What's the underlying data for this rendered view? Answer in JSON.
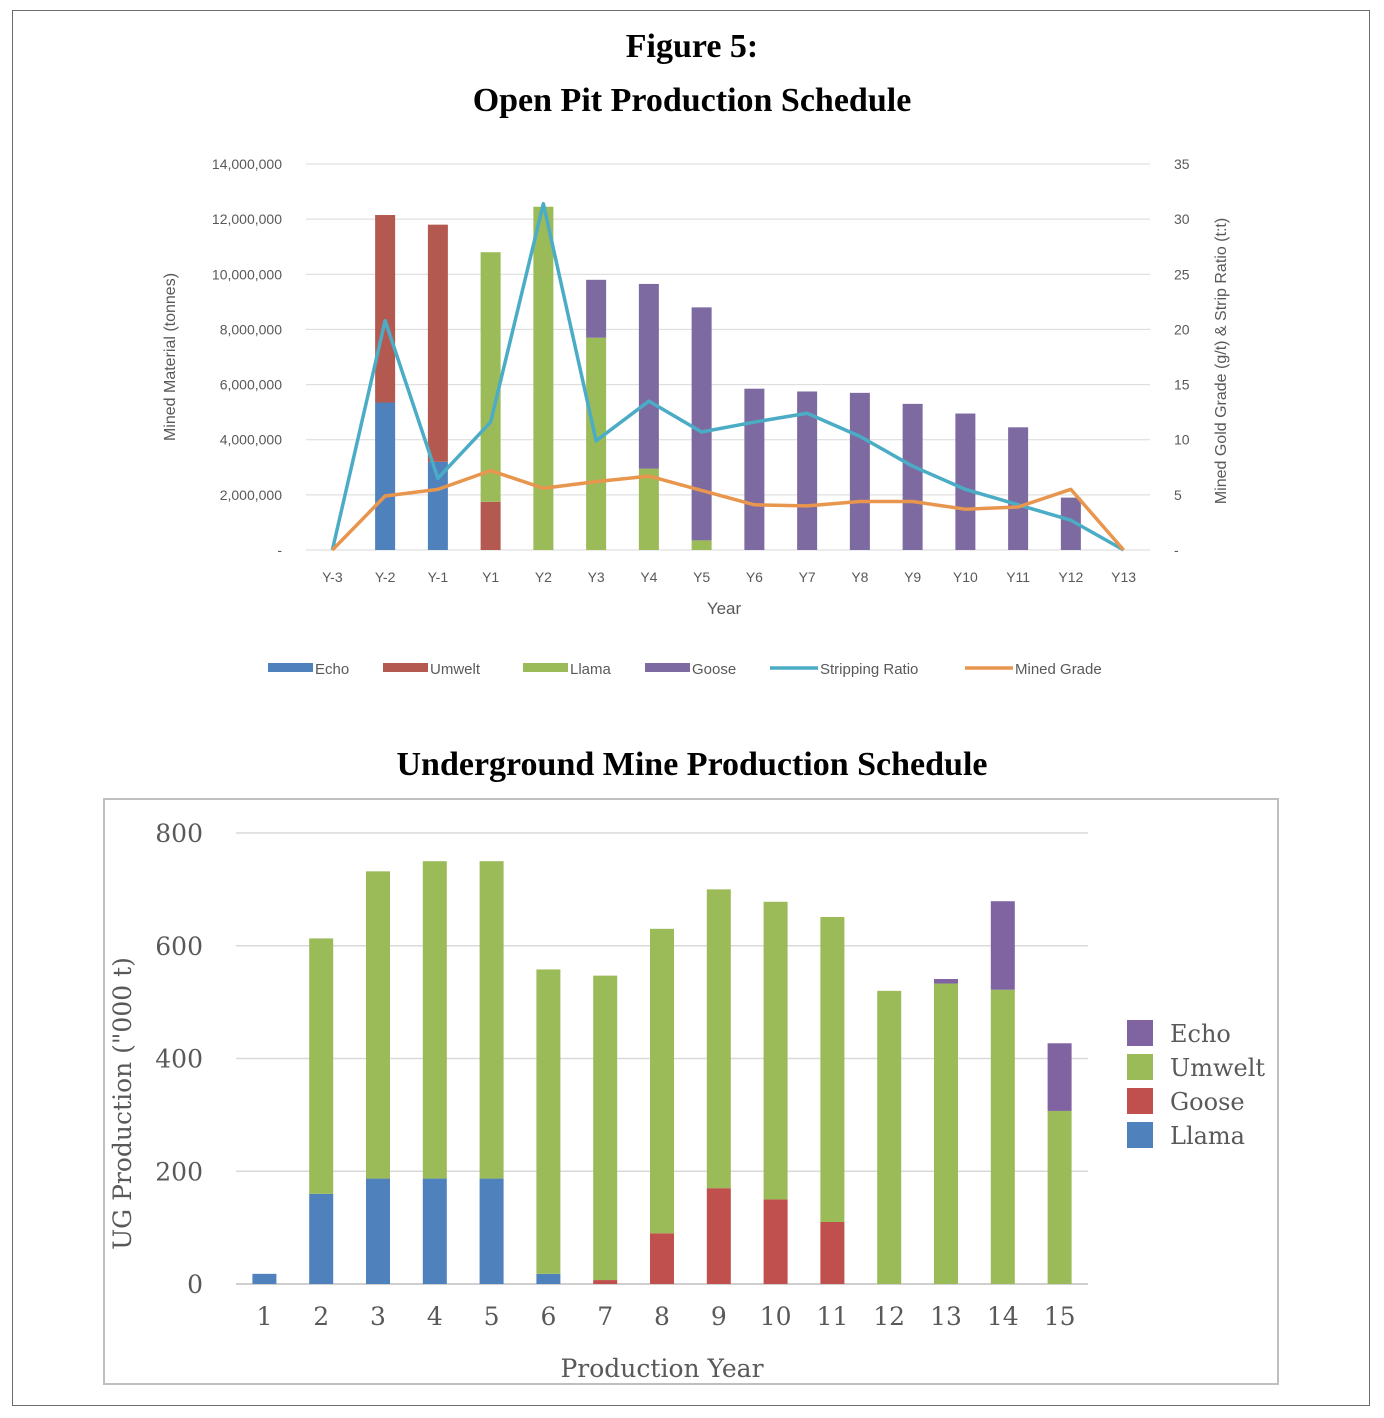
{
  "figure": {
    "figure_label": "Figure 5:",
    "top_title": "Open Pit Production Schedule",
    "bottom_title": "Underground Mine Production Schedule"
  },
  "colors": {
    "echo_top": "#4f81bd",
    "umwelt_top": "#b4594f",
    "llama_top": "#9bbb59",
    "goose_top": "#7d6aa0",
    "stripping": "#4bacc6",
    "grade": "#e8954e",
    "ug_echo": "#8064a2",
    "ug_umwelt": "#9bbb59",
    "ug_goose": "#c0504d",
    "ug_llama": "#4f81bd"
  },
  "chart_data": [
    {
      "type": "bar",
      "stacked": true,
      "title": "",
      "xlabel": "Year",
      "ylabel": "Mined Material (tonnes)",
      "y2label": "Mined Gold Grade (g/t) & Strip Ratio (t:t)",
      "categories": [
        "Y-3",
        "Y-2",
        "Y-1",
        "Y1",
        "Y2",
        "Y3",
        "Y4",
        "Y5",
        "Y6",
        "Y7",
        "Y8",
        "Y9",
        "Y10",
        "Y11",
        "Y12",
        "Y13"
      ],
      "ylim": [
        0,
        14000000
      ],
      "y2lim": [
        0,
        35
      ],
      "y_ticks": [
        {
          "value": 0,
          "label": "-"
        },
        {
          "value": 2000000,
          "label": "2,000,000"
        },
        {
          "value": 4000000,
          "label": "4,000,000"
        },
        {
          "value": 6000000,
          "label": "6,000,000"
        },
        {
          "value": 8000000,
          "label": "8,000,000"
        },
        {
          "value": 10000000,
          "label": "10,000,000"
        },
        {
          "value": 12000000,
          "label": "12,000,000"
        },
        {
          "value": 14000000,
          "label": "14,000,000"
        }
      ],
      "y2_ticks": [
        {
          "value": 0,
          "label": "-"
        },
        {
          "value": 5,
          "label": "5"
        },
        {
          "value": 10,
          "label": "10"
        },
        {
          "value": 15,
          "label": "15"
        },
        {
          "value": 20,
          "label": "20"
        },
        {
          "value": 25,
          "label": "25"
        },
        {
          "value": 30,
          "label": "30"
        },
        {
          "value": 35,
          "label": "35"
        }
      ],
      "series": [
        {
          "name": "Echo",
          "kind": "bar",
          "color_key": "echo_top",
          "values": [
            0,
            5350000,
            3200000,
            0,
            0,
            0,
            0,
            0,
            0,
            0,
            0,
            0,
            0,
            0,
            0,
            0
          ]
        },
        {
          "name": "Umwelt",
          "kind": "bar",
          "color_key": "umwelt_top",
          "values": [
            0,
            6800000,
            8600000,
            1750000,
            0,
            0,
            0,
            0,
            0,
            0,
            0,
            0,
            0,
            0,
            0,
            0
          ]
        },
        {
          "name": "Llama",
          "kind": "bar",
          "color_key": "llama_top",
          "values": [
            0,
            0,
            0,
            9050000,
            12450000,
            7700000,
            2950000,
            350000,
            0,
            0,
            0,
            0,
            0,
            0,
            0,
            0
          ]
        },
        {
          "name": "Goose",
          "kind": "bar",
          "color_key": "goose_top",
          "values": [
            0,
            0,
            0,
            0,
            0,
            2100000,
            6700000,
            8450000,
            5850000,
            5750000,
            5700000,
            5300000,
            4950000,
            4450000,
            1900000,
            0
          ]
        },
        {
          "name": "Stripping Ratio",
          "kind": "line",
          "axis": "y2",
          "color_key": "stripping",
          "values": [
            0,
            20.8,
            6.5,
            11.6,
            31.4,
            9.9,
            13.5,
            10.7,
            11.6,
            12.4,
            10.3,
            7.6,
            5.5,
            4.1,
            2.7,
            0
          ]
        },
        {
          "name": "Mined Grade",
          "kind": "line",
          "axis": "y2",
          "color_key": "grade",
          "values": [
            0,
            4.9,
            5.5,
            7.2,
            5.6,
            6.2,
            6.7,
            5.4,
            4.1,
            4.0,
            4.4,
            4.4,
            3.7,
            3.9,
            5.5,
            0
          ]
        }
      ],
      "grid": true,
      "legend": "bottom"
    },
    {
      "type": "bar",
      "stacked": true,
      "title": "",
      "xlabel": "Production Year",
      "ylabel": "UG Production (\"000 t)",
      "categories": [
        "1",
        "2",
        "3",
        "4",
        "5",
        "6",
        "7",
        "8",
        "9",
        "10",
        "11",
        "12",
        "13",
        "14",
        "15"
      ],
      "ylim": [
        0,
        800
      ],
      "y_ticks": [
        {
          "value": 0,
          "label": "0"
        },
        {
          "value": 200,
          "label": "200"
        },
        {
          "value": 400,
          "label": "400"
        },
        {
          "value": 600,
          "label": "600"
        },
        {
          "value": 800,
          "label": "800"
        }
      ],
      "series": [
        {
          "name": "Llama",
          "color_key": "ug_llama",
          "values": [
            18,
            160,
            187,
            187,
            187,
            18,
            0,
            0,
            0,
            0,
            0,
            0,
            0,
            0,
            0
          ]
        },
        {
          "name": "Goose",
          "color_key": "ug_goose",
          "values": [
            0,
            0,
            0,
            0,
            0,
            0,
            7,
            90,
            170,
            150,
            110,
            0,
            0,
            0,
            0
          ]
        },
        {
          "name": "Umwelt",
          "color_key": "ug_umwelt",
          "values": [
            0,
            453,
            545,
            563,
            563,
            540,
            540,
            540,
            530,
            528,
            541,
            520,
            533,
            522,
            307
          ]
        },
        {
          "name": "Echo",
          "color_key": "ug_echo",
          "values": [
            0,
            0,
            0,
            0,
            0,
            0,
            0,
            0,
            0,
            0,
            0,
            0,
            8,
            157,
            120
          ]
        }
      ],
      "legend_order": [
        "Echo",
        "Umwelt",
        "Goose",
        "Llama"
      ],
      "grid": true,
      "legend": "right"
    }
  ]
}
